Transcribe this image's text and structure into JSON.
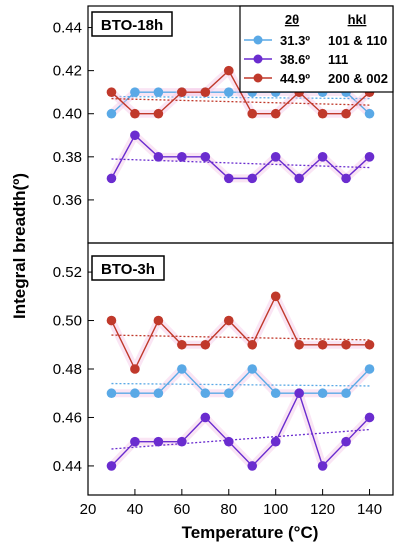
{
  "chart_data": {
    "type": "line",
    "xlabel": "Temperature (°C)",
    "ylabel": "Integral breadth(º)",
    "x_ticks": [
      "20",
      "40",
      "60",
      "80",
      "100",
      "120",
      "140"
    ],
    "xlim": [
      20,
      150
    ],
    "legend": {
      "placement": "top-right",
      "header": {
        "two_theta": "2θ",
        "hkl": "hkl"
      },
      "entries": [
        {
          "two_theta": "31.3º",
          "hkl": "101 & 110",
          "color": "#5aa9e6"
        },
        {
          "two_theta": "38.6º",
          "hkl": "111",
          "color": "#6a2ccf"
        },
        {
          "two_theta": "44.9º",
          "hkl": "200 & 002",
          "color": "#c0392b"
        }
      ]
    },
    "panels": [
      {
        "title": "BTO-18h",
        "ylim": [
          0.34,
          0.45
        ],
        "y_ticks": [
          "0.36",
          "0.38",
          "0.40",
          "0.42",
          "0.44"
        ],
        "y_tick_values": [
          0.36,
          0.38,
          0.4,
          0.42,
          0.44
        ],
        "x": [
          30,
          40,
          50,
          60,
          70,
          80,
          90,
          100,
          110,
          120,
          130,
          140
        ],
        "series": [
          {
            "color": "#5aa9e6",
            "values": [
              0.4,
              0.41,
              0.41,
              0.41,
              0.41,
              0.41,
              0.41,
              0.41,
              0.41,
              0.41,
              0.41,
              0.4
            ],
            "trend": [
              0.408,
              0.407
            ]
          },
          {
            "color": "#6a2ccf",
            "values": [
              0.37,
              0.39,
              0.38,
              0.38,
              0.38,
              0.37,
              0.37,
              0.38,
              0.37,
              0.38,
              0.37,
              0.38
            ],
            "trend": [
              0.379,
              0.375
            ]
          },
          {
            "color": "#c0392b",
            "values": [
              0.41,
              0.4,
              0.4,
              0.41,
              0.41,
              0.42,
              0.4,
              0.4,
              0.41,
              0.4,
              0.4,
              0.41
            ],
            "trend": [
              0.407,
              0.404
            ]
          }
        ]
      },
      {
        "title": "BTO-3h",
        "ylim": [
          0.428,
          0.532
        ],
        "y_ticks": [
          "0.44",
          "0.46",
          "0.48",
          "0.50",
          "0.52"
        ],
        "y_tick_values": [
          0.44,
          0.46,
          0.48,
          0.5,
          0.52
        ],
        "x": [
          30,
          40,
          50,
          60,
          70,
          80,
          90,
          100,
          110,
          120,
          130,
          140
        ],
        "series": [
          {
            "color": "#5aa9e6",
            "values": [
              0.47,
              0.47,
              0.47,
              0.48,
              0.47,
              0.47,
              0.48,
              0.47,
              0.47,
              0.47,
              0.47,
              0.48
            ],
            "trend": [
              0.474,
              0.473
            ]
          },
          {
            "color": "#6a2ccf",
            "values": [
              0.44,
              0.45,
              0.45,
              0.45,
              0.46,
              0.45,
              0.44,
              0.45,
              0.47,
              0.44,
              0.45,
              0.46
            ],
            "trend": [
              0.447,
              0.455
            ]
          },
          {
            "color": "#c0392b",
            "values": [
              0.5,
              0.48,
              0.5,
              0.49,
              0.49,
              0.5,
              0.49,
              0.51,
              0.49,
              0.49,
              0.49,
              0.49
            ],
            "trend": [
              0.494,
              0.492
            ]
          }
        ]
      }
    ]
  }
}
